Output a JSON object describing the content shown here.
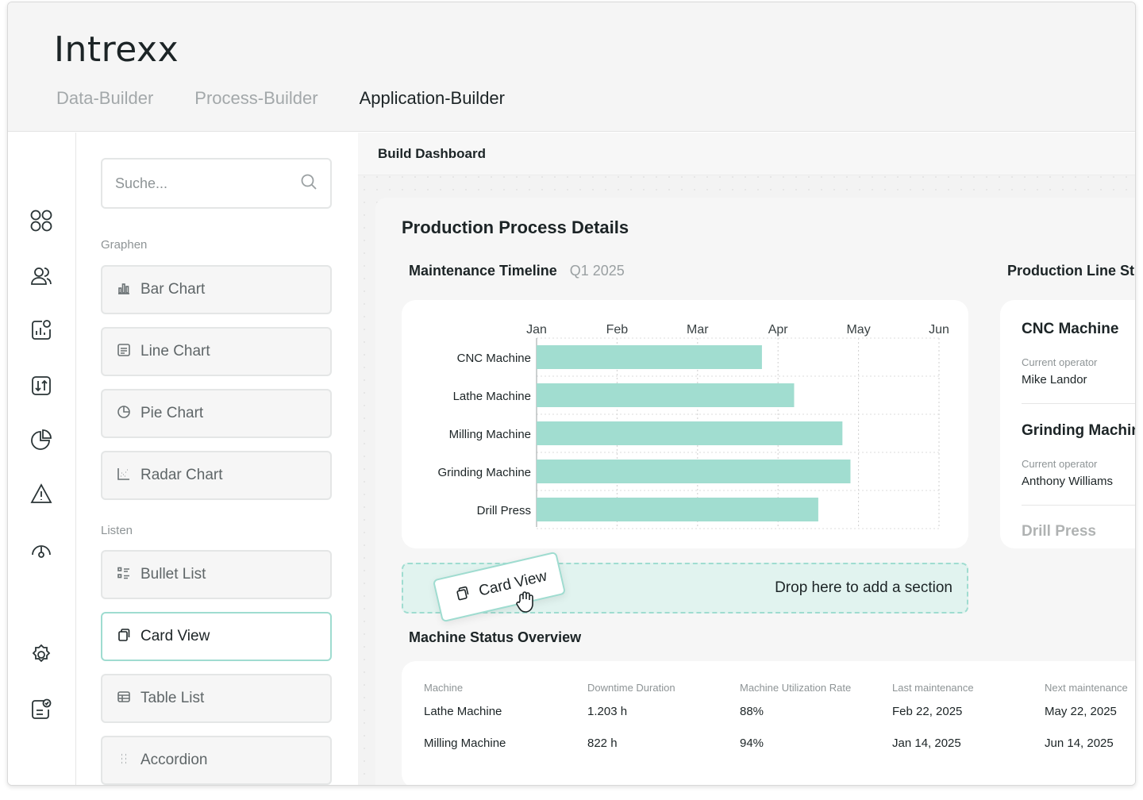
{
  "app": {
    "logo": "Intrexx",
    "tabs": [
      "Data-Builder",
      "Process-Builder",
      "Application-Builder"
    ],
    "active_tab": "Application-Builder"
  },
  "rail": {
    "icons": [
      "apps-icon",
      "users-icon",
      "analytics-icon",
      "integration-icon",
      "pie-chart-icon",
      "warning-icon",
      "gauge-icon",
      "settings-icon",
      "checklist-icon"
    ]
  },
  "panel": {
    "search_placeholder": "Suche...",
    "section_graphs": "Graphen",
    "graphs": [
      {
        "label": "Bar Chart",
        "icon": "bar-chart-icon"
      },
      {
        "label": "Line Chart",
        "icon": "line-chart-icon"
      },
      {
        "label": "Pie Chart",
        "icon": "pie-chart-icon"
      },
      {
        "label": "Radar Chart",
        "icon": "radar-chart-icon"
      }
    ],
    "section_lists": "Listen",
    "lists": [
      {
        "label": "Bullet List",
        "icon": "bullet-list-icon"
      },
      {
        "label": "Card View",
        "icon": "card-view-icon",
        "selected": true
      },
      {
        "label": "Table List",
        "icon": "table-list-icon"
      },
      {
        "label": "Accordion",
        "icon": "accordion-icon"
      }
    ]
  },
  "main": {
    "header_title": "Build Dashboard",
    "canvas_title": "Production Process Details",
    "timeline_title": "Maintenance Timeline",
    "timeline_period": "Q1 2025",
    "status_title": "Production Line St",
    "dropzone_text": "Drop here to add a section",
    "drag_label": "Card View",
    "table_title": "Machine Status Overview"
  },
  "chart_data": {
    "type": "bar",
    "orientation": "horizontal",
    "x_ticks": [
      "Jan",
      "Feb",
      "Mar",
      "Apr",
      "May",
      "Jun"
    ],
    "categories": [
      "CNC Machine",
      "Lathe Machine",
      "Milling Machine",
      "Grinding Machine",
      "Drill Press"
    ],
    "values": [
      2.8,
      3.2,
      3.8,
      3.9,
      3.5
    ],
    "xlim": [
      0,
      5
    ],
    "bar_color": "#a1ddd0",
    "grid": true
  },
  "status_list": [
    {
      "name": "CNC Machine",
      "label": "Current operator",
      "operator": "Mike Landor"
    },
    {
      "name": "Grinding Machine",
      "label": "Current operator",
      "operator": "Anthony Williams"
    },
    {
      "name": "Drill Press"
    }
  ],
  "table": {
    "columns": [
      "Machine",
      "Downtime Duration",
      "Machine Utilization Rate",
      "Last maintenance",
      "Next maintenance"
    ],
    "rows": [
      [
        "Lathe Machine",
        "1.203 h",
        "88%",
        "Feb 22, 2025",
        "May 22, 2025"
      ],
      [
        "Milling Machine",
        "822 h",
        "94%",
        "Jan 14, 2025",
        "Jun 14, 2025"
      ]
    ]
  },
  "colors": {
    "accent": "#9fdcd0",
    "bar": "#a1ddd0",
    "dropzone_bg": "#e1f3ef"
  }
}
